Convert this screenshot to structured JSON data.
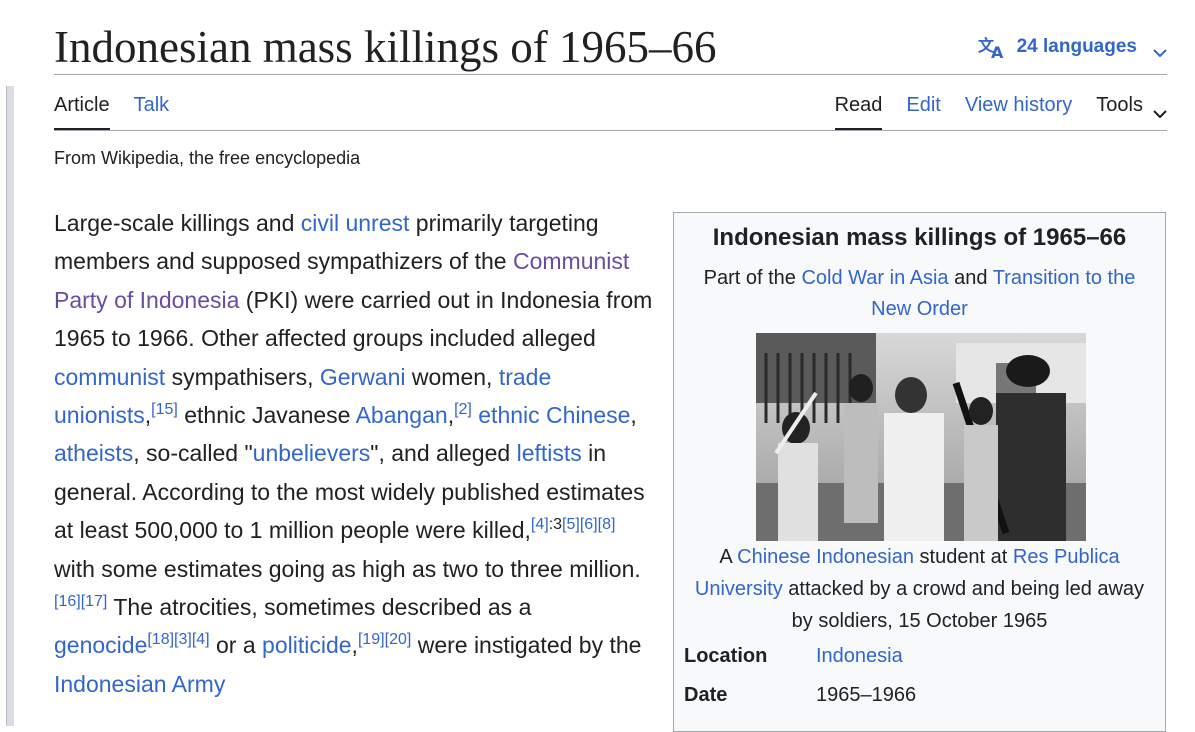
{
  "page": {
    "title": "Indonesian mass killings of 1965–66",
    "languages_label": "24 languages",
    "tagline": "From Wikipedia, the free encyclopedia"
  },
  "tabs": {
    "article": "Article",
    "talk": "Talk",
    "read": "Read",
    "edit": "Edit",
    "view_history": "View history",
    "tools": "Tools"
  },
  "lead": [
    {
      "t": "Large-scale killings and "
    },
    {
      "t": "civil unrest",
      "link": true
    },
    {
      "t": " primarily targeting members and supposed sympathizers of the "
    },
    {
      "t": "Communist Party of Indonesia",
      "link": true,
      "visited": true
    },
    {
      "t": " (PKI) were carried out in Indonesia from 1965 to 1966. Other affected groups included alleged "
    },
    {
      "t": "communist",
      "link": true
    },
    {
      "t": " sympathisers, "
    },
    {
      "t": "Gerwani",
      "link": true
    },
    {
      "t": " women, "
    },
    {
      "t": "trade unionists",
      "link": true
    },
    {
      "t": ","
    },
    {
      "t": "[15]",
      "sup": true,
      "link": true
    },
    {
      "t": " ethnic Javanese "
    },
    {
      "t": "Abangan",
      "link": true
    },
    {
      "t": ","
    },
    {
      "t": "[2]",
      "sup": true,
      "link": true
    },
    {
      "t": " "
    },
    {
      "t": "ethnic Chinese",
      "link": true
    },
    {
      "t": ", "
    },
    {
      "t": "atheists",
      "link": true
    },
    {
      "t": ", so-called \""
    },
    {
      "t": "unbelievers",
      "link": true
    },
    {
      "t": "\", and alleged "
    },
    {
      "t": "leftists",
      "link": true
    },
    {
      "t": " in general. According to the most widely published estimates at least 500,000 to 1 million people were killed,"
    },
    {
      "t": "[4]",
      "sup": true,
      "link": true
    },
    {
      "t": ":3",
      "sup": true
    },
    {
      "t": "[5][6][8]",
      "sup": true,
      "link": true
    },
    {
      "t": " with some estimates going as high as two to three million."
    },
    {
      "t": "[16][17]",
      "sup": true,
      "link": true
    },
    {
      "t": " The atrocities, sometimes described as a "
    },
    {
      "t": "genocide",
      "link": true
    },
    {
      "t": "[18][3][4]",
      "sup": true,
      "link": true
    },
    {
      "t": " or a "
    },
    {
      "t": "politicide",
      "link": true
    },
    {
      "t": ","
    },
    {
      "t": "[19][20]",
      "sup": true,
      "link": true
    },
    {
      "t": " were instigated by the "
    },
    {
      "t": "Indonesian Army",
      "link": true
    }
  ],
  "infobox": {
    "title": "Indonesian mass killings of 1965–66",
    "subtitle": [
      {
        "t": "Part of the "
      },
      {
        "t": "Cold War in Asia",
        "link": true
      },
      {
        "t": " and "
      },
      {
        "t": "Transition to the New Order",
        "link": true
      }
    ],
    "caption": [
      {
        "t": "A "
      },
      {
        "t": "Chinese Indonesian",
        "link": true
      },
      {
        "t": " student at "
      },
      {
        "t": "Res Publica University",
        "link": true
      },
      {
        "t": " attacked by a crowd and being led away by soldiers, 15 October 1965"
      }
    ],
    "location_label": "Location",
    "location_value": "Indonesia",
    "date_label": "Date",
    "date_value": "1965–1966"
  },
  "colors": {
    "link": "#3366cc",
    "visited": "#6b4ba1",
    "text": "#202122",
    "border": "#a2a9b1",
    "infobox_bg": "#f8f9fa"
  },
  "icons": {
    "language": "translate-icon",
    "dropdown": "chevron-down-icon"
  }
}
